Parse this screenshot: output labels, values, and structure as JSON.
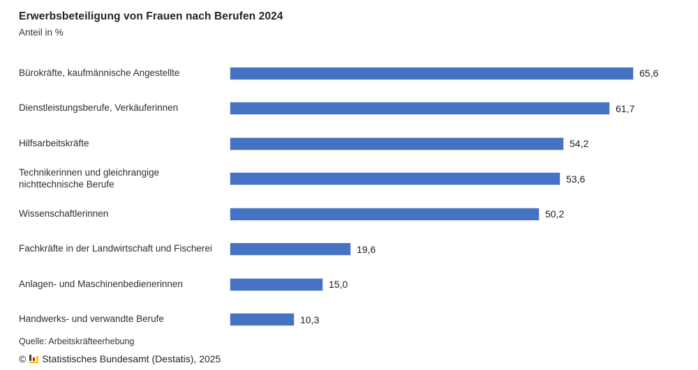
{
  "header": {
    "title": "Erwerbsbeteiligung von Frauen nach Berufen 2024",
    "subtitle": "Anteil in %"
  },
  "toolbar": {
    "menu_icon": "hamburger-menu"
  },
  "chart_data": {
    "type": "bar",
    "orientation": "horizontal",
    "title": "Erwerbsbeteiligung von Frauen nach Berufen 2024",
    "unit_label": "Anteil in %",
    "categories": [
      "Bürokräfte, kaufmännische Angestellte",
      "Dienstleistungsberufe, Verkäuferinnen",
      "Hilfsarbeitskräfte",
      "Technikerinnen und gleichrangige nichttechnische Berufe",
      "Wissenschaftlerinnen",
      "Fachkräfte in der Landwirtschaft und Fischerei",
      "Anlagen- und Maschinenbedienerinnen",
      "Handwerks- und verwandte Berufe"
    ],
    "values": [
      65.6,
      61.7,
      54.2,
      53.6,
      50.2,
      19.6,
      15.0,
      10.3
    ],
    "value_labels": [
      "65,6",
      "61,7",
      "54,2",
      "53,6",
      "50,2",
      "19,6",
      "15,0",
      "10,3"
    ],
    "xlim": [
      0,
      70
    ],
    "bar_color": "#4672c3",
    "grid": false,
    "legend": false
  },
  "footer": {
    "source": "Quelle: Arbeitskräfteerhebung",
    "copyright_prefix": "©",
    "copyright_text": "Statistisches Bundesamt (Destatis), 2025"
  }
}
